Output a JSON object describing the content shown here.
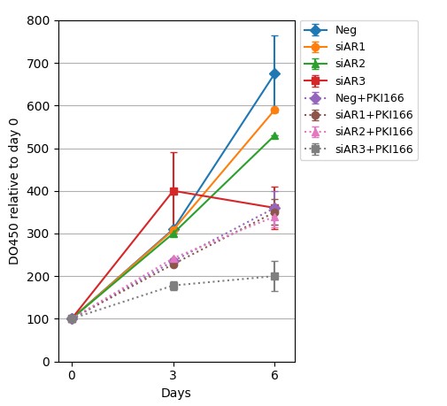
{
  "chart_data": {
    "type": "line",
    "xlabel": "Days",
    "ylabel": "DO450 relative to day 0",
    "x": [
      0,
      3,
      6
    ],
    "xlim": [
      -0.4,
      6.6
    ],
    "xticks": [
      0,
      3,
      6
    ],
    "ylim": [
      0,
      800
    ],
    "yticks": [
      0,
      100,
      200,
      300,
      400,
      500,
      600,
      700,
      800
    ],
    "grid": "y",
    "legend": "upper left",
    "series": [
      {
        "name": "Neg",
        "values": [
          100,
          310,
          675
        ],
        "yerr": [
          0,
          0,
          90
        ],
        "marker": "diamond",
        "line_style": "solid"
      },
      {
        "name": "siAR1",
        "values": [
          100,
          308,
          590
        ],
        "yerr": [
          0,
          0,
          0
        ],
        "marker": "circle",
        "line_style": "solid"
      },
      {
        "name": "siAR2",
        "values": [
          100,
          300,
          530
        ],
        "yerr": [
          0,
          0,
          0
        ],
        "marker": "triangle",
        "line_style": "solid"
      },
      {
        "name": "siAR3",
        "values": [
          100,
          400,
          360
        ],
        "yerr": [
          0,
          90,
          50
        ],
        "marker": "square",
        "line_style": "solid"
      },
      {
        "name": "Neg+PKI166",
        "values": [
          100,
          235,
          360
        ],
        "yerr": [
          0,
          0,
          40
        ],
        "marker": "diamond",
        "line_style": "dotted"
      },
      {
        "name": "siAR1+PKI166",
        "values": [
          100,
          228,
          350
        ],
        "yerr": [
          0,
          0,
          30
        ],
        "marker": "circle",
        "line_style": "dotted"
      },
      {
        "name": "siAR2+PKI166",
        "values": [
          100,
          242,
          340
        ],
        "yerr": [
          0,
          0,
          25
        ],
        "marker": "triangle",
        "line_style": "dotted"
      },
      {
        "name": "siAR3+PKI166",
        "values": [
          100,
          178,
          200
        ],
        "yerr": [
          0,
          10,
          35
        ],
        "marker": "square",
        "line_style": "dotted"
      }
    ]
  }
}
